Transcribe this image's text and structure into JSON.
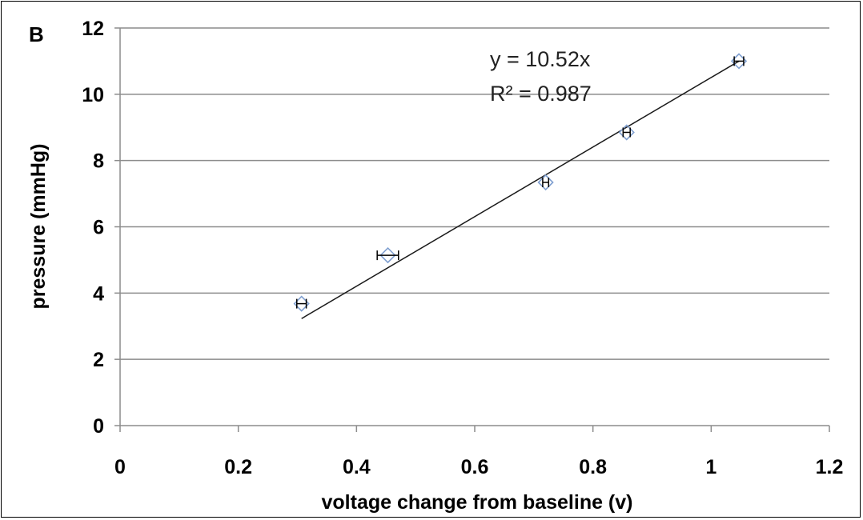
{
  "chart_data": {
    "type": "scatter",
    "panel_label": "B",
    "title": "",
    "xlabel": "voltage  change from baseline (v)",
    "ylabel": "pressure (mmHg)",
    "xlim": [
      0,
      1.2
    ],
    "ylim": [
      0,
      12
    ],
    "x_ticks": [
      "0",
      "0.2",
      "0.4",
      "0.6",
      "0.8",
      "1",
      "1.2"
    ],
    "y_ticks": [
      "0",
      "2",
      "4",
      "6",
      "8",
      "10",
      "12"
    ],
    "grid": "horizontal",
    "series": [
      {
        "marker": "diamond",
        "color": "#7f9fd0",
        "points": [
          {
            "x": 0.307,
            "y": 3.68,
            "x_err": 0.008
          },
          {
            "x": 0.453,
            "y": 5.14,
            "x_err": 0.018
          },
          {
            "x": 0.72,
            "y": 7.34,
            "x_err": 0.005
          },
          {
            "x": 0.857,
            "y": 8.85,
            "x_err": 0.006
          },
          {
            "x": 1.047,
            "y": 11.0,
            "x_err": 0.008
          }
        ]
      }
    ],
    "trendline": {
      "x_range": [
        0.307,
        1.047
      ],
      "y_range": [
        3.23,
        11.0
      ],
      "equation": "y = 10.52x",
      "r_squared": "R² = 0.987"
    }
  }
}
